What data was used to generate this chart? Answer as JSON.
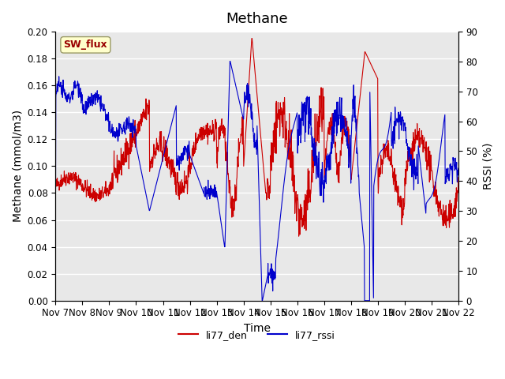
{
  "title": "Methane",
  "ylabel_left": "Methane (mmol/m3)",
  "ylabel_right": "RSSI (%)",
  "xlabel": "Time",
  "ylim_left": [
    0.0,
    0.2
  ],
  "ylim_right": [
    0,
    90
  ],
  "yticks_left": [
    0.0,
    0.02,
    0.04,
    0.06,
    0.08,
    0.1,
    0.12,
    0.14,
    0.16,
    0.18,
    0.2
  ],
  "yticks_right": [
    0,
    10,
    20,
    30,
    40,
    50,
    60,
    70,
    80,
    90
  ],
  "xtick_labels": [
    "Nov 7",
    "Nov 8",
    "Nov 9",
    "Nov 10",
    "Nov 11",
    "Nov 12",
    "Nov 13",
    "Nov 14",
    "Nov 15",
    "Nov 16",
    "Nov 17",
    "Nov 18",
    "Nov 19",
    "Nov 20",
    "Nov 21",
    "Nov 22"
  ],
  "legend_labels": [
    "li77_den",
    "li77_rssi"
  ],
  "sw_flux_label": "SW_flux",
  "bg_color": "#e8e8e8",
  "line_color_red": "#cc0000",
  "line_color_blue": "#0000cc",
  "title_fontsize": 13,
  "axis_label_fontsize": 10,
  "tick_fontsize": 8.5
}
